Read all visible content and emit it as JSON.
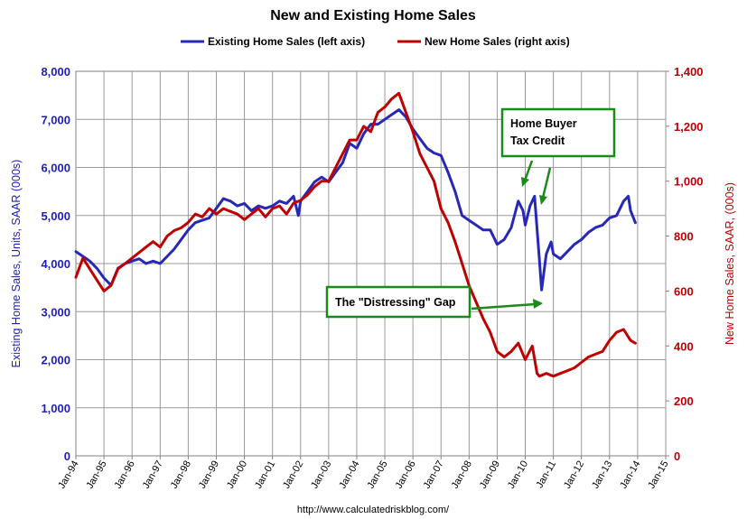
{
  "chart_data": {
    "type": "line",
    "title": "New and Existing Home Sales",
    "source": "http://www.calculatedriskblog.com/",
    "left_axis": {
      "label": "Existing Home Sales, Units, SAAR (000s)",
      "ylim": [
        0,
        8000
      ],
      "ticks": [
        "0",
        "1,000",
        "2,000",
        "3,000",
        "4,000",
        "5,000",
        "6,000",
        "7,000",
        "8,000"
      ],
      "color": "#1f1fb4"
    },
    "right_axis": {
      "label": "New Home Sales, SAAR, (000s)",
      "ylim": [
        0,
        1400
      ],
      "ticks": [
        "0",
        "200",
        "400",
        "600",
        "800",
        "1,000",
        "1,200",
        "1,400"
      ],
      "color": "#c00000"
    },
    "x_ticks": [
      "Jan-94",
      "Jan-95",
      "Jan-96",
      "Jan-97",
      "Jan-98",
      "Jan-99",
      "Jan-00",
      "Jan-01",
      "Jan-02",
      "Jan-03",
      "Jan-04",
      "Jan-05",
      "Jan-06",
      "Jan-07",
      "Jan-08",
      "Jan-09",
      "Jan-10",
      "Jan-11",
      "Jan-12",
      "Jan-13",
      "Jan-14",
      "Jan-15"
    ],
    "xlim": [
      1994.0,
      2015.0
    ],
    "grid": true,
    "legend_position": "top",
    "series": [
      {
        "name": "Existing Home Sales (left axis)",
        "axis": "left",
        "color": "#2828b8",
        "x": [
          1994.0,
          1994.25,
          1994.5,
          1994.75,
          1995.0,
          1995.25,
          1995.5,
          1995.75,
          1996.0,
          1996.25,
          1996.5,
          1996.75,
          1997.0,
          1997.25,
          1997.5,
          1997.75,
          1998.0,
          1998.25,
          1998.5,
          1998.75,
          1999.0,
          1999.25,
          1999.5,
          1999.75,
          2000.0,
          2000.25,
          2000.5,
          2000.75,
          2001.0,
          2001.25,
          2001.5,
          2001.75,
          2001.92,
          2002.0,
          2002.25,
          2002.5,
          2002.75,
          2003.0,
          2003.25,
          2003.5,
          2003.75,
          2004.0,
          2004.25,
          2004.5,
          2004.75,
          2005.0,
          2005.25,
          2005.5,
          2005.75,
          2006.0,
          2006.25,
          2006.5,
          2006.75,
          2007.0,
          2007.25,
          2007.5,
          2007.75,
          2008.0,
          2008.25,
          2008.5,
          2008.75,
          2009.0,
          2009.25,
          2009.5,
          2009.75,
          2009.92,
          2010.0,
          2010.17,
          2010.33,
          2010.5,
          2010.58,
          2010.75,
          2010.92,
          2011.0,
          2011.25,
          2011.5,
          2011.75,
          2012.0,
          2012.25,
          2012.5,
          2012.75,
          2013.0,
          2013.25,
          2013.5,
          2013.67,
          2013.75,
          2013.92
        ],
        "values": [
          4250,
          4150,
          4050,
          3900,
          3700,
          3550,
          3900,
          4000,
          4050,
          4100,
          4000,
          4050,
          4000,
          4150,
          4300,
          4500,
          4700,
          4850,
          4900,
          4950,
          5150,
          5350,
          5300,
          5200,
          5250,
          5100,
          5200,
          5150,
          5200,
          5300,
          5250,
          5400,
          5000,
          5300,
          5500,
          5700,
          5800,
          5700,
          5900,
          6100,
          6500,
          6400,
          6700,
          6900,
          6900,
          7000,
          7100,
          7200,
          7050,
          6800,
          6600,
          6400,
          6300,
          6250,
          5900,
          5500,
          5000,
          4900,
          4800,
          4700,
          4700,
          4400,
          4500,
          4750,
          5300,
          5100,
          4800,
          5200,
          5400,
          4100,
          3450,
          4200,
          4450,
          4200,
          4100,
          4250,
          4400,
          4500,
          4650,
          4750,
          4800,
          4950,
          5000,
          5300,
          5400,
          5100,
          4850
        ]
      },
      {
        "name": "New Home Sales (right axis)",
        "axis": "right",
        "color": "#c00000",
        "x": [
          1994.0,
          1994.25,
          1994.5,
          1994.75,
          1995.0,
          1995.25,
          1995.5,
          1995.75,
          1996.0,
          1996.25,
          1996.5,
          1996.75,
          1997.0,
          1997.25,
          1997.5,
          1997.75,
          1998.0,
          1998.25,
          1998.5,
          1998.75,
          1999.0,
          1999.25,
          1999.5,
          1999.75,
          2000.0,
          2000.25,
          2000.5,
          2000.75,
          2001.0,
          2001.25,
          2001.5,
          2001.75,
          2002.0,
          2002.25,
          2002.5,
          2002.75,
          2003.0,
          2003.25,
          2003.5,
          2003.75,
          2004.0,
          2004.25,
          2004.5,
          2004.75,
          2005.0,
          2005.25,
          2005.5,
          2005.75,
          2006.0,
          2006.25,
          2006.5,
          2006.75,
          2007.0,
          2007.25,
          2007.5,
          2007.75,
          2008.0,
          2008.25,
          2008.5,
          2008.75,
          2009.0,
          2009.25,
          2009.5,
          2009.75,
          2010.0,
          2010.25,
          2010.42,
          2010.5,
          2010.75,
          2011.0,
          2011.25,
          2011.5,
          2011.75,
          2012.0,
          2012.25,
          2012.5,
          2012.75,
          2013.0,
          2013.25,
          2013.5,
          2013.75,
          2013.92
        ],
        "values": [
          650,
          720,
          680,
          640,
          600,
          620,
          680,
          700,
          720,
          740,
          760,
          780,
          760,
          800,
          820,
          830,
          850,
          880,
          870,
          900,
          880,
          900,
          890,
          880,
          860,
          880,
          900,
          870,
          900,
          910,
          880,
          920,
          930,
          950,
          980,
          1000,
          1000,
          1050,
          1100,
          1150,
          1150,
          1200,
          1180,
          1250,
          1270,
          1300,
          1320,
          1250,
          1180,
          1100,
          1050,
          1000,
          900,
          850,
          780,
          700,
          620,
          560,
          500,
          450,
          380,
          360,
          380,
          410,
          350,
          400,
          300,
          290,
          300,
          290,
          300,
          310,
          320,
          340,
          360,
          370,
          380,
          420,
          450,
          460,
          420,
          410
        ]
      }
    ],
    "annotations": [
      {
        "lines": [
          "Home Buyer",
          "Tax Credit"
        ]
      },
      {
        "lines": [
          "The \"Distressing\" Gap"
        ]
      }
    ]
  }
}
